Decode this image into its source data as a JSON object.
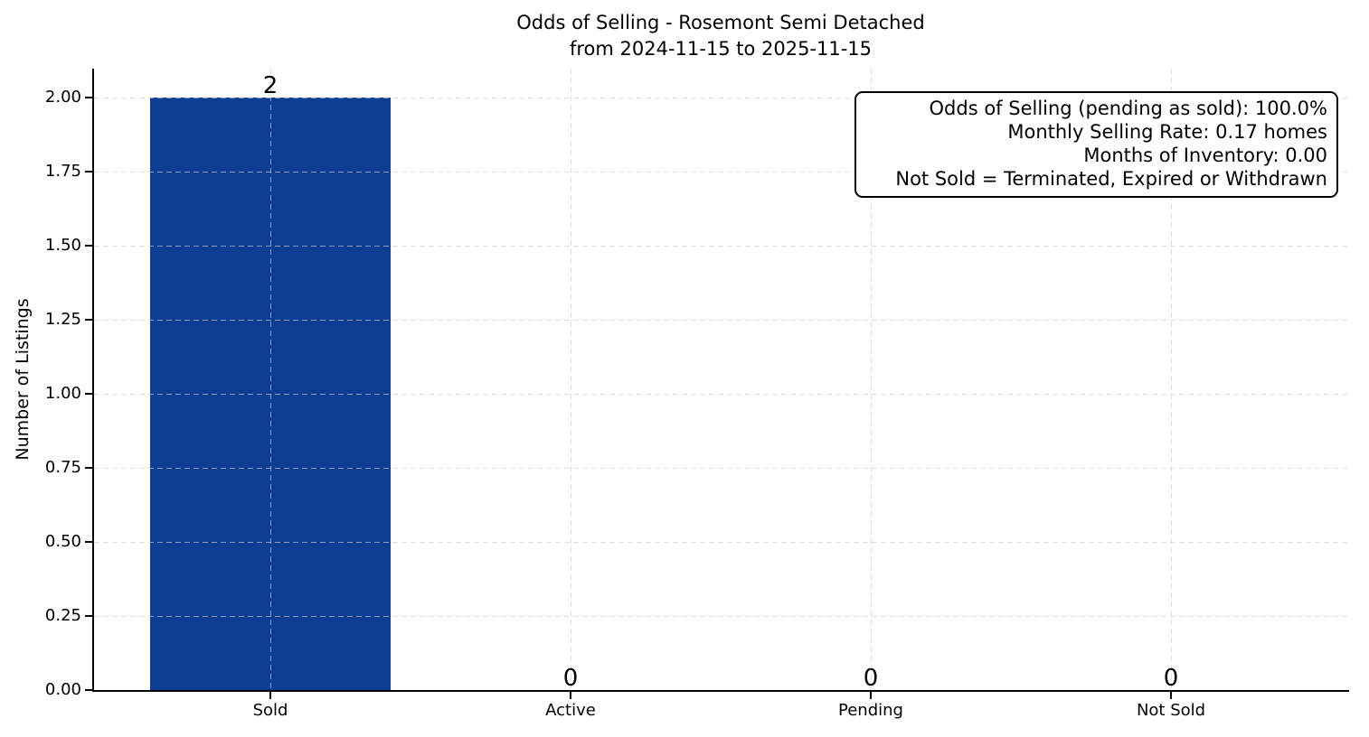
{
  "chart_data": {
    "type": "bar",
    "title": "Odds of Selling - Rosemont Semi Detached",
    "subtitle": "from 2024-11-15 to 2025-11-15",
    "categories": [
      "Sold",
      "Active",
      "Pending",
      "Not Sold"
    ],
    "values": [
      2,
      0,
      0,
      0
    ],
    "bar_value_labels": [
      "2",
      "0",
      "0",
      "0"
    ],
    "xlabel": "",
    "ylabel": "Number of Listings",
    "ylim": [
      0,
      2.1
    ],
    "yticks": [
      0,
      0.25,
      0.5,
      0.75,
      1,
      1.25,
      1.5,
      1.75,
      2
    ],
    "ytick_labels": [
      "0.00",
      "0.25",
      "0.50",
      "0.75",
      "1.00",
      "1.25",
      "1.50",
      "1.75",
      "2.00"
    ],
    "bar_color": "#0d3e94",
    "grid": "dashed, both axes, light gray",
    "legend_position": "none",
    "annotation_box": {
      "lines": [
        "Odds of Selling (pending as sold): 100.0%",
        "Monthly Selling Rate: 0.17 homes",
        "Months of Inventory: 0.00",
        "Not Sold = Terminated, Expired or Withdrawn"
      ]
    }
  }
}
